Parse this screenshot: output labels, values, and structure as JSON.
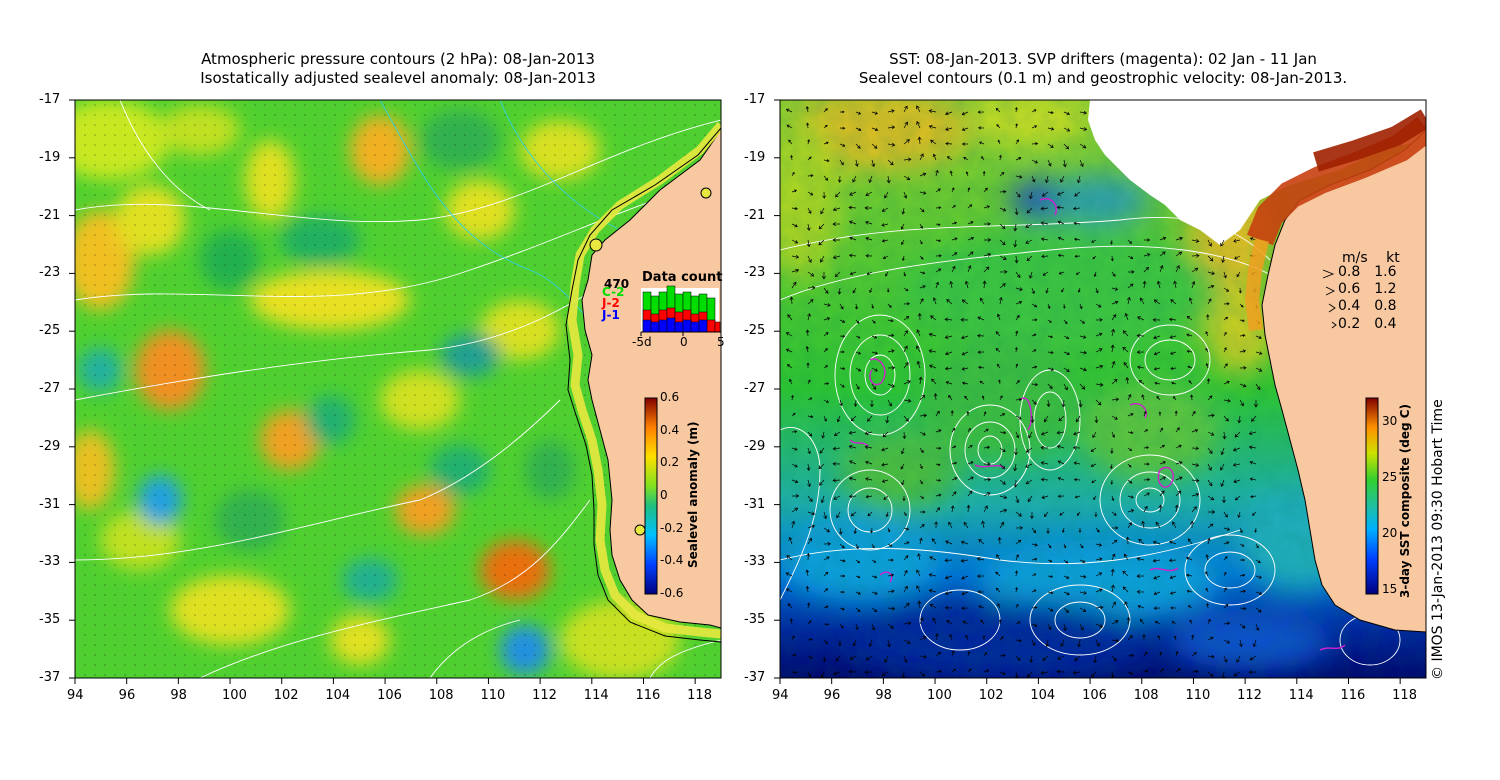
{
  "left_panel": {
    "title_line1": "Atmospheric pressure contours (2 hPa): 08-Jan-2013",
    "title_line2": "Isostatically adjusted sealevel anomaly: 08-Jan-2013",
    "x_ticks": [
      "94",
      "96",
      "98",
      "100",
      "102",
      "104",
      "106",
      "108",
      "110",
      "112",
      "114",
      "116",
      "118"
    ],
    "y_ticks": [
      "-17",
      "-19",
      "-21",
      "-23",
      "-25",
      "-27",
      "-29",
      "-31",
      "-33",
      "-35",
      "-37"
    ],
    "inset": {
      "title": "Data count",
      "count": "470",
      "missions": [
        "C-2",
        "J-2",
        "J-1"
      ],
      "mission_colors": [
        "#00cc00",
        "#ff0000",
        "#0000ff"
      ],
      "axis_ticks": [
        "-5d",
        "0",
        "5"
      ]
    },
    "colorbar": {
      "label": "Sealevel anomaly (m)",
      "ticks": [
        "0.6",
        "0.4",
        "0.2",
        "0",
        "-0.2",
        "-0.4",
        "-0.6"
      ]
    }
  },
  "right_panel": {
    "title_line1": "SST: 08-Jan-2013. SVP drifters (magenta): 02 Jan - 11 Jan",
    "title_line2": "Sealevel contours (0.1 m) and geostrophic velocity: 08-Jan-2013.",
    "x_ticks": [
      "94",
      "96",
      "98",
      "100",
      "102",
      "104",
      "106",
      "108",
      "110",
      "112",
      "114",
      "116",
      "118"
    ],
    "y_ticks": [
      "-17",
      "-19",
      "-21",
      "-23",
      "-25",
      "-27",
      "-29",
      "-31",
      "-33",
      "-35",
      "-37"
    ],
    "speed_legend": {
      "header_ms": "m/s",
      "header_kt": "kt",
      "rows": [
        {
          "ms": "0.8",
          "kt": "1.6"
        },
        {
          "ms": "0.6",
          "kt": "1.2"
        },
        {
          "ms": "0.4",
          "kt": "0.8"
        },
        {
          "ms": "0.2",
          "kt": "0.4"
        }
      ]
    },
    "colorbar": {
      "label": "3-day SST composite (deg C)",
      "ticks": [
        "30",
        "25",
        "20",
        "15"
      ]
    }
  },
  "credit": "© IMOS 13-Jan-2013 09:30 Hobart Time",
  "colors": {
    "land": "#f8c8a0",
    "cloud": "#ffffff",
    "drifter": "#d020d0",
    "contour": "#ffffff",
    "coast": "#000000"
  }
}
